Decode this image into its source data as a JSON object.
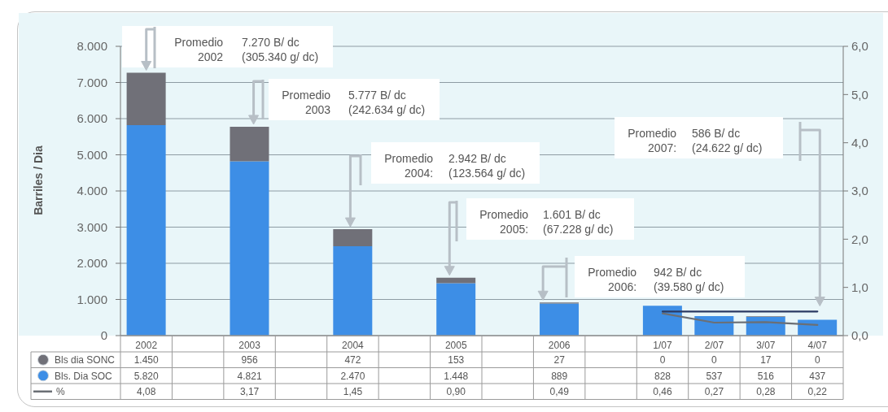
{
  "chart_data": {
    "type": "bar",
    "stacked": true,
    "categories": [
      "2002",
      null,
      "2003",
      null,
      "2004",
      null,
      "2005",
      null,
      "2006",
      null,
      "1/07",
      "2/07",
      "3/07",
      "4/07"
    ],
    "series": [
      {
        "name": "Bls. Dia SOC",
        "color": "#3d8ee6",
        "values": [
          5820,
          null,
          4821,
          null,
          2470,
          null,
          1448,
          null,
          889,
          null,
          828,
          537,
          516,
          437
        ],
        "value_labels": [
          "5.820",
          null,
          "4.821",
          null,
          "2.470",
          null,
          "1.448",
          null,
          "889",
          null,
          "828",
          "537",
          "516",
          "437"
        ]
      },
      {
        "name": "Bls dia SONC",
        "color": "#707078",
        "values": [
          1450,
          null,
          956,
          null,
          472,
          null,
          153,
          null,
          27,
          null,
          0,
          0,
          17,
          0
        ],
        "value_labels": [
          "1.450",
          null,
          "956",
          null,
          "472",
          null,
          "153",
          null,
          "27",
          null,
          "0",
          "0",
          "17",
          "0"
        ]
      },
      {
        "name": "%",
        "type": "line",
        "axis": "y2",
        "color": "#6b6f75",
        "values": [
          null,
          null,
          null,
          null,
          null,
          null,
          null,
          null,
          null,
          null,
          0.46,
          0.27,
          0.28,
          0.22
        ],
        "value_labels": [
          "4,08",
          null,
          "3,17",
          null,
          "1,45",
          null,
          "0,90",
          null,
          "0,49",
          null,
          "0,46",
          "0,27",
          "0,28",
          "0,22"
        ]
      },
      {
        "type": "line",
        "axis": "y2",
        "color": "#2b3a63",
        "values": [
          null,
          null,
          null,
          null,
          null,
          null,
          null,
          null,
          null,
          null,
          0.5,
          0.5,
          0.5,
          0.5
        ]
      }
    ],
    "ylabel": "Barriles / Dia",
    "ylim": [
      0,
      8000
    ],
    "yticks": [
      0,
      {
        "value": 1000,
        "label": "1.000"
      },
      {
        "value": 2000,
        "label": "2.000"
      },
      {
        "value": 3000,
        "label": "3.000"
      },
      {
        "value": 4000,
        "label": "4.000"
      },
      {
        "value": 5000,
        "label": "5.000"
      },
      {
        "value": 6000,
        "label": "6.000"
      },
      {
        "value": 7000,
        "label": "7.000"
      },
      {
        "value": 8000,
        "label": "8.000"
      }
    ],
    "y2lim": [
      0,
      6
    ],
    "y2ticks": [
      {
        "value": 0,
        "label": "0,0"
      },
      {
        "value": 1,
        "label": "1,0"
      },
      {
        "value": 2,
        "label": "2,0"
      },
      {
        "value": 3,
        "label": "3,0"
      },
      {
        "value": 4,
        "label": "4,0"
      },
      {
        "value": 5,
        "label": "5,0"
      },
      {
        "value": 6,
        "label": "6,0"
      }
    ],
    "grid": "y",
    "legend": "bottom",
    "annotations": [
      "Promedio 2002 7.270 B/ dc (305.340 g/ dc)",
      "Promedio 2003 5.777 B/ dc (242.634 g/ dc)",
      "Promedio 2004: 2.942 B/ dc (123.564 g/ dc)",
      "Promedio 2005: 1.601 B/ dc (67.228 g/ dc)",
      "Promedio 2006: 942 B/ dc (39.580 g/ dc)",
      "Promedio 2007: 586 B/ dc (24.622 g/ dc)"
    ]
  }
}
